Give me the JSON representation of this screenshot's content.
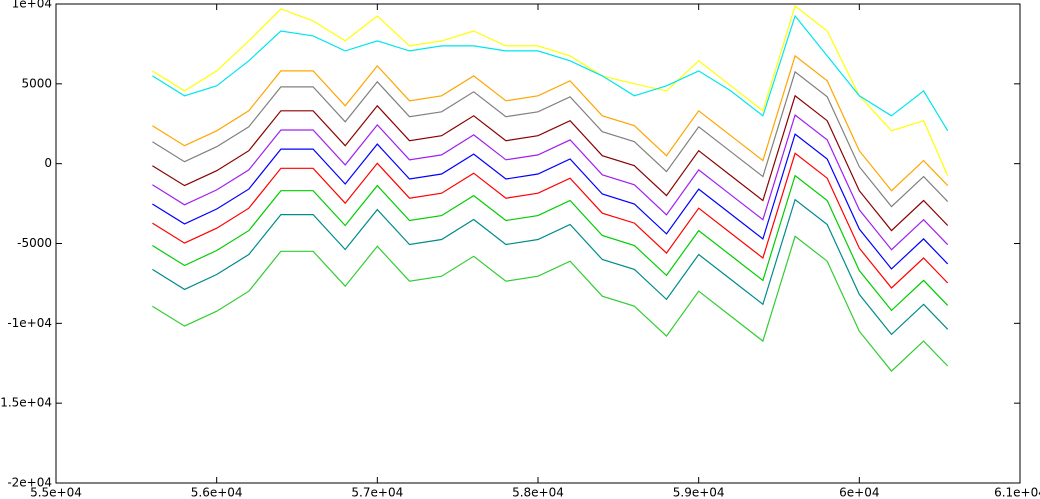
{
  "chart_data": {
    "type": "line",
    "x": [
      55600,
      55800,
      56000,
      56200,
      56400,
      56600,
      56800,
      57000,
      57200,
      57400,
      57600,
      57800,
      58000,
      58200,
      58400,
      58600,
      58800,
      59000,
      59200,
      59400,
      59600,
      59800,
      60000,
      60200,
      60400,
      60550
    ],
    "series": [
      {
        "color": "#ffff00",
        "values": [
          5810,
          4560,
          5810,
          7690,
          9690,
          8940,
          7690,
          9250,
          7375,
          7690,
          8310,
          7375,
          7375,
          6750,
          5500,
          5000,
          4560,
          6440,
          4875,
          3310,
          9875,
          8310,
          4250,
          2060,
          2690,
          -750
        ]
      },
      {
        "color": "#00e5ee",
        "values": [
          5500,
          4250,
          4875,
          6440,
          8310,
          8000,
          7060,
          7690,
          7060,
          7375,
          7375,
          7060,
          7060,
          6440,
          5500,
          4250,
          4875,
          5810,
          4560,
          3000,
          9250,
          6750,
          4250,
          3000,
          4560,
          2060
        ]
      },
      {
        "color": "#ffa500",
        "values": [
          2375,
          1125,
          2060,
          3310,
          5810,
          5810,
          3625,
          6125,
          3940,
          4250,
          5500,
          3940,
          4250,
          5190,
          3000,
          2375,
          500,
          3310,
          1750,
          190,
          6750,
          5190,
          810,
          -1690,
          190,
          -1375
        ]
      },
      {
        "color": "#808080",
        "values": [
          1375,
          125,
          1060,
          2310,
          4810,
          4810,
          2625,
          5125,
          2940,
          3250,
          4500,
          2940,
          3250,
          4190,
          2000,
          1375,
          -500,
          2310,
          750,
          -810,
          5750,
          4190,
          -190,
          -2690,
          -810,
          -2375
        ]
      },
      {
        "color": "#8b0000",
        "values": [
          -125,
          -1375,
          -440,
          810,
          3310,
          3310,
          1125,
          3625,
          1440,
          1750,
          3000,
          1440,
          1750,
          2690,
          500,
          -125,
          -2000,
          810,
          -750,
          -2310,
          4250,
          2690,
          -1690,
          -4190,
          -2310,
          -3875
        ]
      },
      {
        "color": "#a020f0",
        "values": [
          -1325,
          -2575,
          -1640,
          -390,
          2110,
          2110,
          -75,
          2425,
          240,
          550,
          1800,
          240,
          550,
          1490,
          -700,
          -1325,
          -3200,
          -390,
          -1950,
          -3510,
          3050,
          1490,
          -2890,
          -5390,
          -3510,
          -5075
        ]
      },
      {
        "color": "#0000ff",
        "values": [
          -2525,
          -3775,
          -2840,
          -1590,
          910,
          910,
          -1275,
          1225,
          -960,
          -650,
          600,
          -960,
          -650,
          290,
          -1900,
          -2525,
          -4400,
          -1590,
          -3150,
          -4710,
          1850,
          290,
          -4090,
          -6590,
          -4710,
          -6275
        ]
      },
      {
        "color": "#ff0000",
        "values": [
          -3725,
          -4975,
          -4040,
          -2790,
          -290,
          -290,
          -2475,
          25,
          -2160,
          -1850,
          -600,
          -2160,
          -1850,
          -910,
          -3100,
          -3725,
          -5600,
          -2790,
          -4350,
          -5910,
          650,
          -910,
          -5290,
          -7790,
          -5910,
          -7475
        ]
      },
      {
        "color": "#00cd00",
        "values": [
          -5125,
          -6375,
          -5440,
          -4190,
          -1690,
          -1690,
          -3875,
          -1375,
          -3560,
          -3250,
          -2000,
          -3560,
          -3250,
          -2310,
          -4500,
          -5125,
          -7000,
          -4190,
          -5750,
          -7310,
          -750,
          -2310,
          -6690,
          -9190,
          -7310,
          -8875
        ]
      },
      {
        "color": "#008b8b",
        "values": [
          -6625,
          -7875,
          -6940,
          -5690,
          -3190,
          -3190,
          -5375,
          -2875,
          -5060,
          -4750,
          -3500,
          -5060,
          -4750,
          -3810,
          -6000,
          -6625,
          -8500,
          -5690,
          -7250,
          -8810,
          -2250,
          -3810,
          -8190,
          -10690,
          -8810,
          -10375
        ]
      },
      {
        "color": "#32cd32",
        "values": [
          -8925,
          -10175,
          -9240,
          -7990,
          -5490,
          -5490,
          -7675,
          -5175,
          -7360,
          -7050,
          -5800,
          -7360,
          -7050,
          -6110,
          -8300,
          -8925,
          -10800,
          -7990,
          -9550,
          -11110,
          -4550,
          -6110,
          -10490,
          -12990,
          -11110,
          -12675
        ]
      }
    ],
    "xlim": [
      55000,
      61000
    ],
    "xticks": [
      {
        "value": 55000,
        "label": "5.5e+04"
      },
      {
        "value": 56000,
        "label": "5.6e+04"
      },
      {
        "value": 57000,
        "label": "5.7e+04"
      },
      {
        "value": 58000,
        "label": "5.8e+04"
      },
      {
        "value": 59000,
        "label": "5.9e+04"
      },
      {
        "value": 60000,
        "label": "6e+04"
      },
      {
        "value": 61000,
        "label": "6.1e+04"
      }
    ],
    "ylim": [
      -20000,
      10000
    ],
    "yticks": [
      {
        "value": -20000,
        "label": "-2e+04"
      },
      {
        "value": -15000,
        "label": "-1.5e+04"
      },
      {
        "value": -10000,
        "label": "-1e+04"
      },
      -5000,
      0,
      5000,
      {
        "value": 10000,
        "label": "1e+04"
      }
    ],
    "grid": false
  }
}
